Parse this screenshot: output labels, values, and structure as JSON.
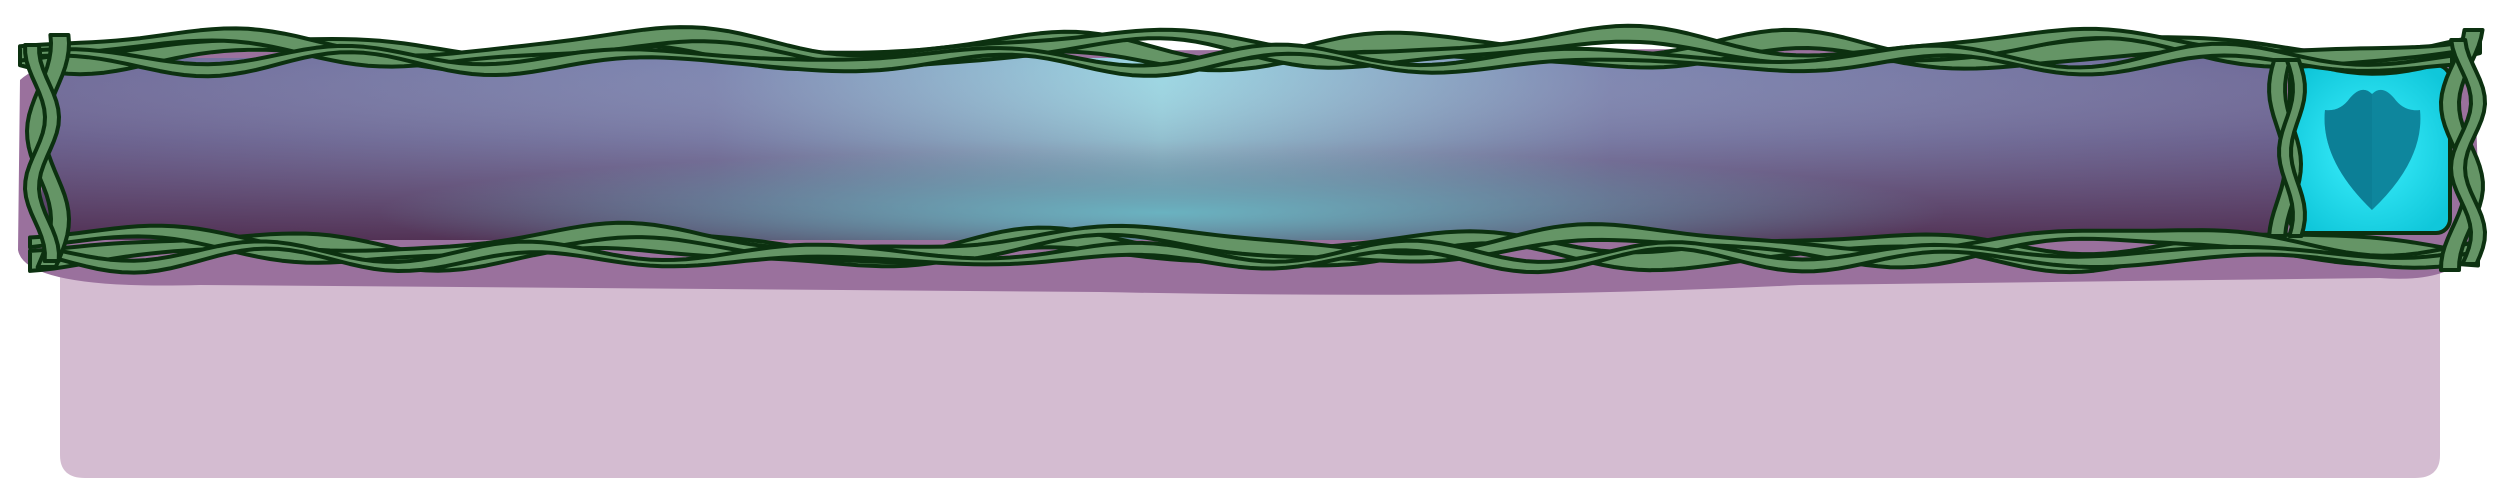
{
  "panel": {
    "role": "vine-framed-banner",
    "icons": {
      "shield": "shield-icon"
    },
    "colors": {
      "panel_body": "#d4bcd1",
      "shadow": "#9a719d",
      "banner_edge": "#4c2647",
      "banner_mid": "#7e86b0",
      "banner_center": "#9cd7e3",
      "banner_bottom_center": "#6ab2c0",
      "vine_fill": "#659566",
      "vine_stroke": "#0c3110",
      "shield_box": "#1ad7e6",
      "shield": "#0e869d"
    }
  }
}
